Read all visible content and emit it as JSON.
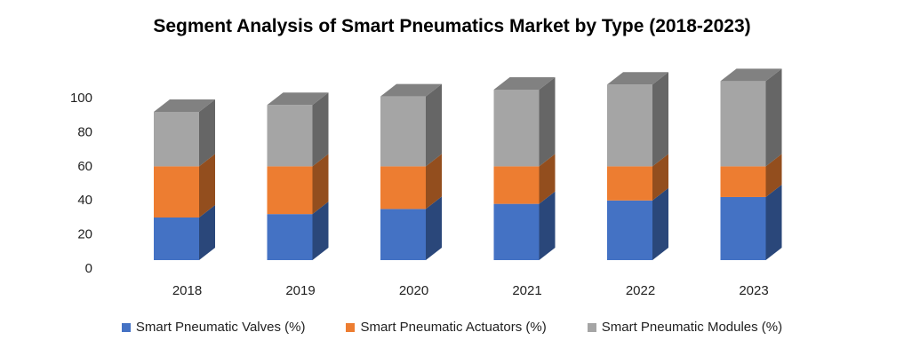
{
  "chart_data": {
    "type": "bar",
    "stacked": true,
    "style": "3d-column",
    "title": "Segment Analysis of Smart Pneumatics Market by Type (2018-2023)",
    "categories": [
      "2018",
      "2019",
      "2020",
      "2021",
      "2022",
      "2023"
    ],
    "series": [
      {
        "name": "Smart Pneumatic Valves (%)",
        "color": "#4472C4",
        "values": [
          25,
          27,
          30,
          33,
          35,
          37
        ]
      },
      {
        "name": "Smart Pneumatic Actuators (%)",
        "color": "#ED7D31",
        "values": [
          30,
          28,
          25,
          22,
          20,
          18
        ]
      },
      {
        "name": "Smart Pneumatic Modules (%)",
        "color": "#A5A5A5",
        "values": [
          32,
          36,
          41,
          45,
          48,
          50
        ]
      }
    ],
    "yticks": [
      "0",
      "20",
      "40",
      "60",
      "80",
      "100"
    ],
    "ylim": [
      0,
      100
    ],
    "xlabel": "",
    "ylabel": "",
    "grid": false,
    "legend_position": "bottom"
  }
}
